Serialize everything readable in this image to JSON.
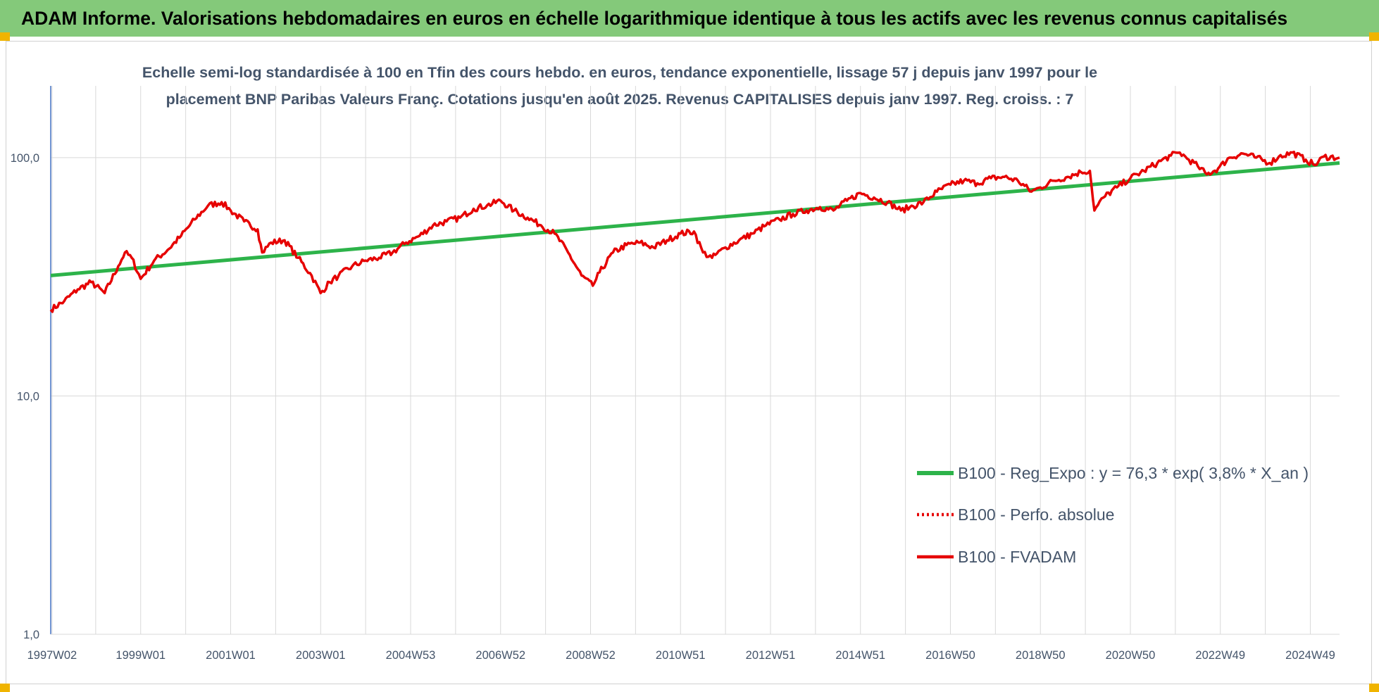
{
  "banner": {
    "title": "ADAM Informe. Valorisations hebdomadaires en euros en échelle logarithmique identique à tous les actifs avec les revenus connus capitalisés",
    "background": "#84c97a"
  },
  "chart_data": {
    "type": "line",
    "title_line1": "Echelle semi-log standardisée à 100 en Tfin des cours hebdo. en euros, tendance exponentielle, lissage 57 j depuis janv 1997 pour le",
    "title_line2": "placement BNP Paribas Valeurs Franç. Cotations jusqu'en août 2025. Revenus CAPITALISES depuis janv 1997. Reg. croiss. : 7",
    "xlabel": "",
    "ylabel": "",
    "y_scale": "log",
    "ylim": [
      1,
      200
    ],
    "y_ticks": [
      {
        "value": 1,
        "label": "1,0"
      },
      {
        "value": 10,
        "label": "10,0"
      },
      {
        "value": 100,
        "label": "100,0"
      }
    ],
    "x_range": [
      1997.0,
      2025.65
    ],
    "x_ticks": [
      {
        "value": 1997.03,
        "label": "1997W02"
      },
      {
        "value": 1999.0,
        "label": "1999W01"
      },
      {
        "value": 2001.0,
        "label": "2001W01"
      },
      {
        "value": 2003.0,
        "label": "2003W01"
      },
      {
        "value": 2005.0,
        "label": "2004W53"
      },
      {
        "value": 2007.0,
        "label": "2006W52"
      },
      {
        "value": 2009.0,
        "label": "2008W52"
      },
      {
        "value": 2011.0,
        "label": "2010W51"
      },
      {
        "value": 2013.0,
        "label": "2012W51"
      },
      {
        "value": 2015.0,
        "label": "2014W51"
      },
      {
        "value": 2017.0,
        "label": "2016W50"
      },
      {
        "value": 2019.0,
        "label": "2018W50"
      },
      {
        "value": 2021.0,
        "label": "2020W50"
      },
      {
        "value": 2023.0,
        "label": "2022W49"
      },
      {
        "value": 2025.0,
        "label": "2024W49"
      }
    ],
    "vertical_grid_years": [
      1997.03,
      1998.0,
      1999.0,
      2000.0,
      2001.0,
      2002.0,
      2003.0,
      2004.0,
      2005.0,
      2006.0,
      2007.0,
      2008.0,
      2009.0,
      2010.0,
      2011.0,
      2012.0,
      2013.0,
      2014.0,
      2015.0,
      2016.0,
      2017.0,
      2018.0,
      2019.0,
      2020.0,
      2021.0,
      2022.0,
      2023.0,
      2024.0,
      2025.0
    ],
    "grid": true,
    "legend_position": "bottom-right",
    "series": [
      {
        "name": "B100 - Reg_Expo : y = 76,3 * exp( 3,8% *  X_an )",
        "color": "#2db34a",
        "style": "solid",
        "x": [
          1997.0,
          2025.65
        ],
        "y": [
          32,
          95
        ]
      },
      {
        "name": "B100 - Perfo. absolue",
        "color": "#e60000",
        "style": "dotted",
        "x": [],
        "y": []
      },
      {
        "name": "B100 - FVADAM",
        "color": "#e60000",
        "style": "solid",
        "x": [
          1997.0,
          1997.3,
          1997.6,
          1997.9,
          1998.2,
          1998.5,
          1998.65,
          1998.8,
          1999.0,
          1999.3,
          1999.6,
          1999.9,
          2000.2,
          2000.5,
          2000.8,
          2001.0,
          2001.3,
          2001.6,
          2001.7,
          2001.9,
          2002.2,
          2002.5,
          2002.8,
          2003.0,
          2003.2,
          2003.4,
          2003.7,
          2004.0,
          2004.3,
          2004.6,
          2004.9,
          2005.2,
          2005.5,
          2005.8,
          2006.1,
          2006.4,
          2006.7,
          2007.0,
          2007.3,
          2007.6,
          2007.9,
          2008.2,
          2008.5,
          2008.8,
          2009.05,
          2009.2,
          2009.5,
          2009.8,
          2010.1,
          2010.4,
          2010.7,
          2011.0,
          2011.3,
          2011.5,
          2011.7,
          2012.0,
          2012.3,
          2012.6,
          2012.9,
          2013.2,
          2013.5,
          2013.8,
          2014.1,
          2014.4,
          2014.7,
          2015.0,
          2015.3,
          2015.6,
          2015.9,
          2016.1,
          2016.4,
          2016.7,
          2017.0,
          2017.3,
          2017.6,
          2017.9,
          2018.2,
          2018.5,
          2018.8,
          2019.0,
          2019.3,
          2019.6,
          2019.9,
          2020.1,
          2020.2,
          2020.4,
          2020.7,
          2021.0,
          2021.3,
          2021.6,
          2021.9,
          2022.1,
          2022.3,
          2022.5,
          2022.7,
          2022.95,
          2023.2,
          2023.5,
          2023.8,
          2024.1,
          2024.3,
          2024.6,
          2024.9,
          2025.1,
          2025.3,
          2025.65
        ],
        "y": [
          23,
          25,
          28,
          30,
          27,
          35,
          40,
          38,
          31,
          37,
          41,
          47,
          55,
          63,
          65,
          60,
          54,
          50,
          40,
          44,
          45,
          38,
          32,
          27,
          30,
          32,
          35,
          37,
          38,
          40,
          44,
          47,
          52,
          54,
          56,
          61,
          63,
          66,
          60,
          56,
          52,
          48,
          40,
          32,
          29,
          33,
          40,
          43,
          44,
          42,
          45,
          48,
          49,
          40,
          38,
          42,
          45,
          48,
          52,
          55,
          58,
          60,
          62,
          60,
          66,
          71,
          68,
          65,
          60,
          62,
          65,
          72,
          77,
          80,
          78,
          82,
          83,
          80,
          72,
          75,
          80,
          83,
          87,
          88,
          60,
          68,
          75,
          82,
          88,
          95,
          102,
          105,
          98,
          92,
          85,
          90,
          100,
          104,
          100,
          95,
          101,
          105,
          98,
          93,
          101,
          100
        ]
      }
    ]
  }
}
